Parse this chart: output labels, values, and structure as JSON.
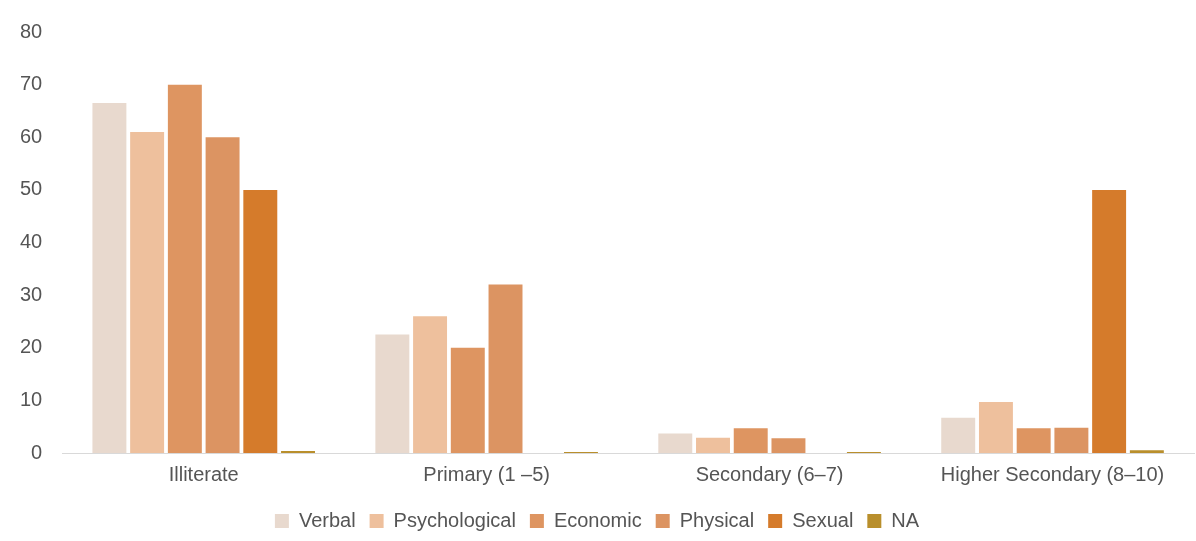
{
  "chart_data": {
    "type": "bar",
    "categories": [
      "Illiterate",
      "Primary (1 –5)",
      "Secondary (6–7)",
      "Higher Secondary (8–10)"
    ],
    "series": [
      {
        "name": "Verbal",
        "color": "#e8d9ce",
        "values": [
          66.5,
          22.5,
          3.7,
          6.7
        ]
      },
      {
        "name": "Psychological",
        "color": "#eec09d",
        "values": [
          61,
          26,
          2.9,
          9.7
        ]
      },
      {
        "name": "Economic",
        "color": "#de9561",
        "values": [
          70,
          20,
          4.7,
          4.7
        ]
      },
      {
        "name": "Physical",
        "color": "#dc9462",
        "values": [
          60,
          32,
          2.8,
          4.8
        ]
      },
      {
        "name": "Sexual",
        "color": "#d57b2b",
        "values": [
          50,
          0,
          0,
          50
        ]
      },
      {
        "name": "NA",
        "color": "#b98f2c",
        "values": [
          0.4,
          0.2,
          0.2,
          0.5
        ]
      }
    ],
    "ylim": [
      0,
      80
    ],
    "yticks": [
      0,
      10,
      20,
      30,
      40,
      50,
      60,
      70,
      80
    ],
    "grid": false,
    "legend": "bottom"
  }
}
